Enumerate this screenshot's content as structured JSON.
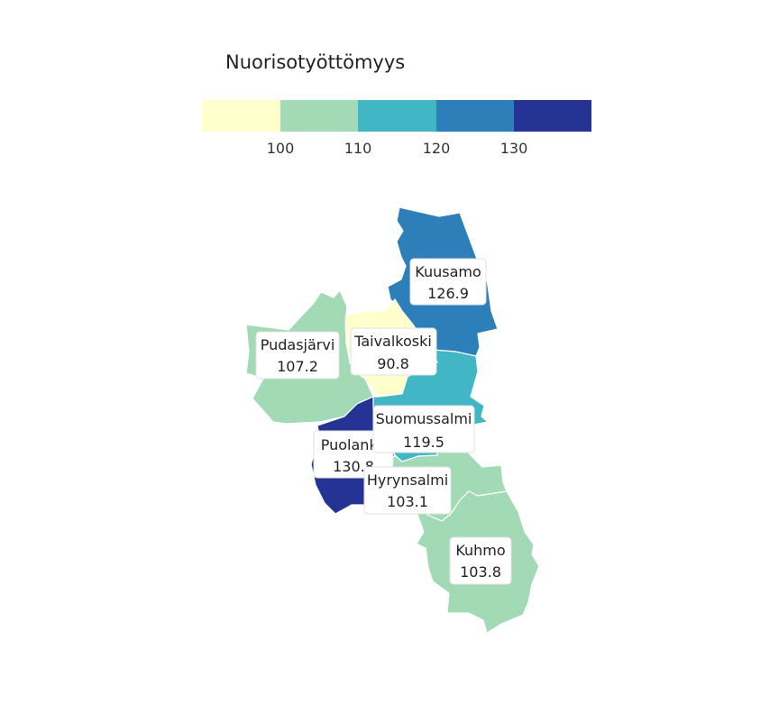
{
  "legend": {
    "title": "Nuorisotyöttömyys",
    "ticks": [
      "100",
      "110",
      "120",
      "130"
    ],
    "bins": [
      "#ffffcc",
      "#a1dab4",
      "#41b6c4",
      "#2c7fb8",
      "#253494"
    ]
  },
  "regions": [
    {
      "id": "kuusamo",
      "name": "Kuusamo",
      "value": "126.9",
      "color": "#2c7fb8"
    },
    {
      "id": "taivalkoski",
      "name": "Taivalkoski",
      "value": "90.8",
      "color": "#ffffcc"
    },
    {
      "id": "pudasjarvi",
      "name": "Pudasjärvi",
      "value": "107.2",
      "color": "#a1dab4"
    },
    {
      "id": "suomussalmi",
      "name": "Suomussalmi",
      "value": "119.5",
      "color": "#41b6c4"
    },
    {
      "id": "puolanka",
      "name": "Puolanka",
      "value": "130.8",
      "color": "#253494"
    },
    {
      "id": "hyrynsalmi",
      "name": "Hyrynsalmi",
      "value": "103.1",
      "color": "#a1dab4"
    },
    {
      "id": "kuhmo",
      "name": "Kuhmo",
      "value": "103.8",
      "color": "#a1dab4"
    }
  ]
}
